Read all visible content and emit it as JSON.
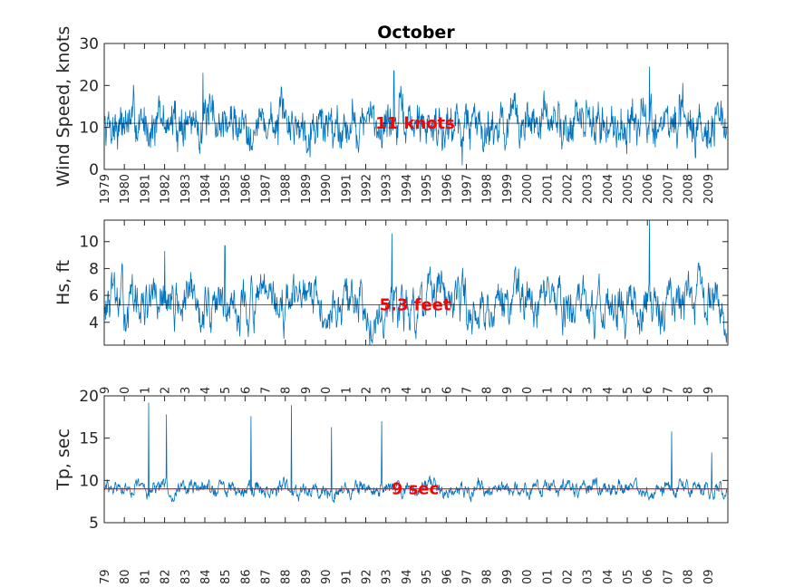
{
  "chart_data": [
    {
      "type": "line",
      "title": "October",
      "ylabel": "Wind Speed, knots",
      "xlim": [
        1979,
        2010
      ],
      "ylim": [
        0,
        30
      ],
      "yticks": [
        0,
        10,
        20,
        30
      ],
      "xtick_labels": [
        "1979",
        "1980",
        "1981",
        "1982",
        "1983",
        "1984",
        "1985",
        "1986",
        "1987",
        "1988",
        "1989",
        "1990",
        "1991",
        "1992",
        "1993",
        "1994",
        "1995",
        "1996",
        "1997",
        "1998",
        "1999",
        "2000",
        "2001",
        "2002",
        "2003",
        "2004",
        "2005",
        "2006",
        "2007",
        "2008",
        "2009"
      ],
      "mean": 11,
      "mean_label": "11 knots",
      "mean_line_color": "#000000",
      "series_color": "#0072BD",
      "series_summary": {
        "typical_low": 5,
        "typical_high": 17,
        "std": 3.2
      },
      "peaks": [
        {
          "x": 1983.9,
          "y": 23
        },
        {
          "x": 1993.4,
          "y": 23.5
        },
        {
          "x": 2006.1,
          "y": 24.5
        },
        {
          "x": 1996.8,
          "y": 1
        }
      ],
      "seed": 7
    },
    {
      "type": "line",
      "ylabel": "Hs, ft",
      "xlim": [
        1979,
        2010
      ],
      "ylim": [
        2.3,
        11.6
      ],
      "yticks": [
        4,
        6,
        8,
        10
      ],
      "xtick_labels": [
        "9",
        "0",
        "1",
        "2",
        "3",
        "4",
        "5",
        "6",
        "7",
        "8",
        "9",
        "0",
        "1",
        "2",
        "3",
        "4",
        "5",
        "6",
        "7",
        "8",
        "9",
        "0",
        "1",
        "2",
        "3",
        "4",
        "5",
        "6",
        "7",
        "8",
        "9"
      ],
      "mean": 5.3,
      "mean_label": "5.3 feet",
      "mean_line_color": "#000000",
      "series_color": "#0072BD",
      "series_summary": {
        "typical_low": 3,
        "typical_high": 9,
        "std": 1.3
      },
      "peaks": [
        {
          "x": 1993.3,
          "y": 10.6
        },
        {
          "x": 2006.1,
          "y": 11.6
        },
        {
          "x": 1985.0,
          "y": 9.7
        },
        {
          "x": 1982.0,
          "y": 9.3
        }
      ],
      "seed": 13
    },
    {
      "type": "line",
      "ylabel": "Tp, sec",
      "xlim": [
        1979,
        2010
      ],
      "ylim": [
        5,
        20
      ],
      "yticks": [
        5,
        10,
        15,
        20
      ],
      "xtick_labels": [
        "79",
        "80",
        "81",
        "82",
        "83",
        "84",
        "85",
        "86",
        "87",
        "88",
        "89",
        "90",
        "91",
        "92",
        "93",
        "94",
        "95",
        "96",
        "97",
        "98",
        "99",
        "00",
        "01",
        "02",
        "03",
        "04",
        "05",
        "06",
        "07",
        "08",
        "09"
      ],
      "mean": 9,
      "mean_label": "9 sec",
      "mean_line_color": "#FF0000",
      "series_color": "#0072BD",
      "series_summary": {
        "typical_low": 7,
        "typical_high": 11,
        "std": 0.9
      },
      "peaks": [
        {
          "x": 1981.2,
          "y": 19.2
        },
        {
          "x": 1982.1,
          "y": 17.8
        },
        {
          "x": 1986.3,
          "y": 17.6
        },
        {
          "x": 1988.3,
          "y": 18.9
        },
        {
          "x": 1990.3,
          "y": 16.3
        },
        {
          "x": 1992.8,
          "y": 17
        },
        {
          "x": 2007.2,
          "y": 15.8
        },
        {
          "x": 2009.2,
          "y": 13.3
        }
      ],
      "seed": 29
    }
  ]
}
